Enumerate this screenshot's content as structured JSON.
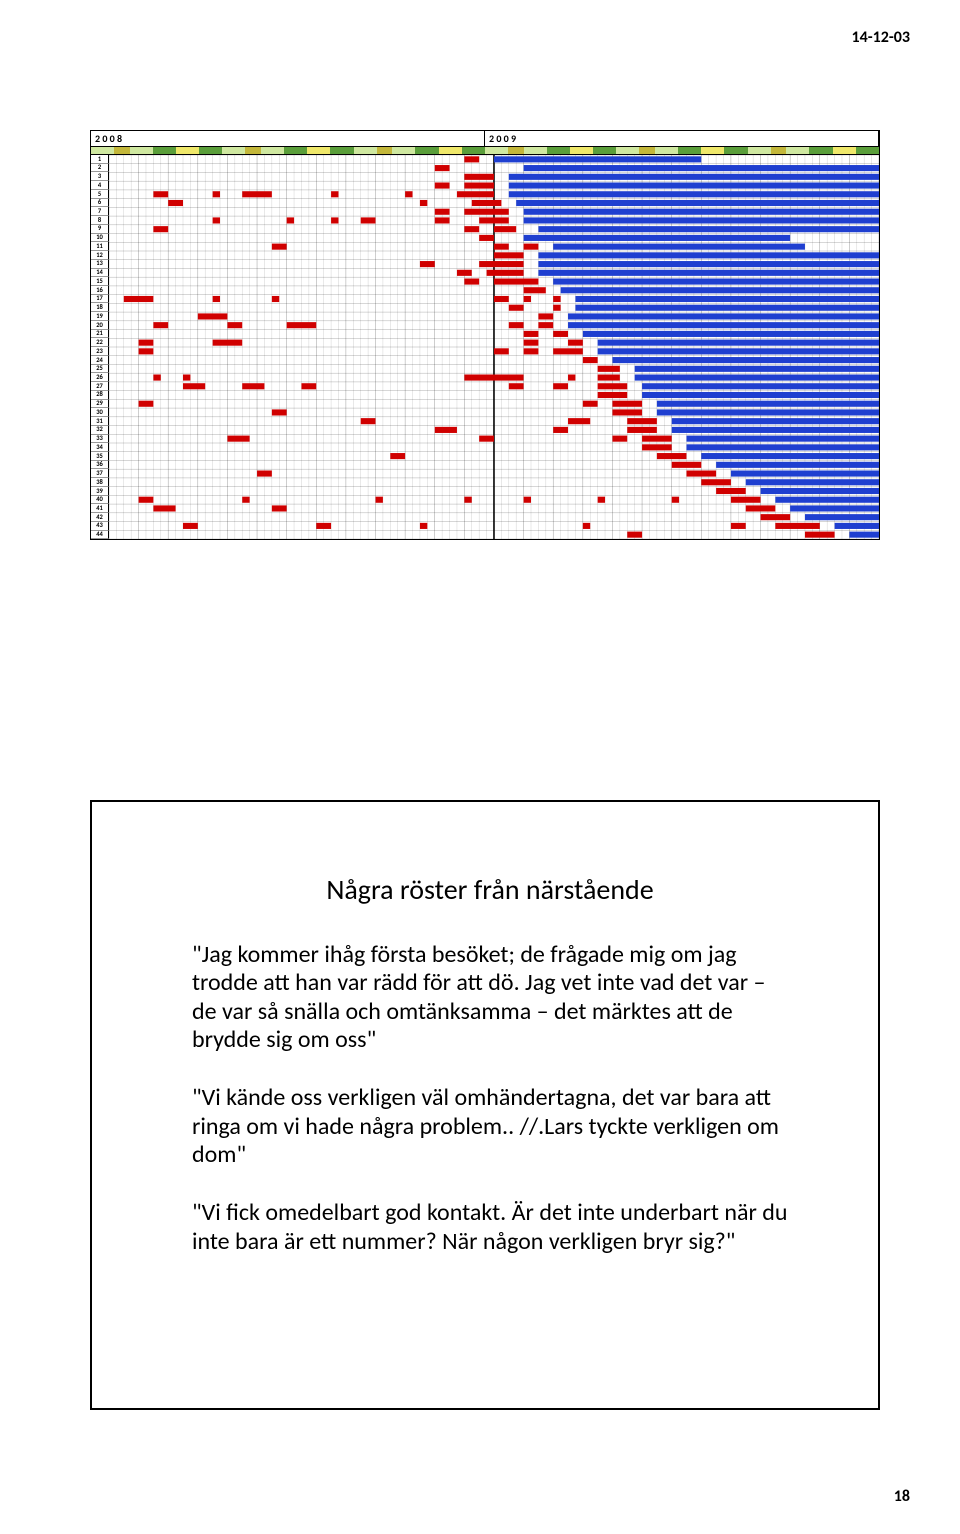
{
  "header": {
    "date": "14-12-03"
  },
  "footer": {
    "page": "18"
  },
  "chart": {
    "years": [
      "2 0 0 8",
      "2 0 0 9"
    ],
    "row_count": 44,
    "col_count": 104,
    "label_col_width": 18,
    "grid_line_color": "#000000",
    "grid_line_opacity_minor": 0.35,
    "background": "#ffffff",
    "year_split_col": 52,
    "stripe": {
      "height": 8,
      "segments": [
        {
          "w": 0.03,
          "c": "#cfe8a0"
        },
        {
          "w": 0.02,
          "c": "#c3b73a"
        },
        {
          "w": 0.03,
          "c": "#cfe8a0"
        },
        {
          "w": 0.03,
          "c": "#5a9e3a"
        },
        {
          "w": 0.03,
          "c": "#efe86a"
        },
        {
          "w": 0.03,
          "c": "#5a9e3a"
        },
        {
          "w": 0.03,
          "c": "#cfe8a0"
        },
        {
          "w": 0.02,
          "c": "#c3b73a"
        },
        {
          "w": 0.03,
          "c": "#cfe8a0"
        },
        {
          "w": 0.03,
          "c": "#5a9e3a"
        },
        {
          "w": 0.03,
          "c": "#efe86a"
        },
        {
          "w": 0.03,
          "c": "#5a9e3a"
        },
        {
          "w": 0.03,
          "c": "#cfe8a0"
        },
        {
          "w": 0.02,
          "c": "#c3b73a"
        },
        {
          "w": 0.03,
          "c": "#cfe8a0"
        },
        {
          "w": 0.03,
          "c": "#5a9e3a"
        },
        {
          "w": 0.03,
          "c": "#efe86a"
        },
        {
          "w": 0.03,
          "c": "#5a9e3a"
        },
        {
          "w": 0.03,
          "c": "#cfe8a0"
        },
        {
          "w": 0.02,
          "c": "#c3b73a"
        },
        {
          "w": 0.03,
          "c": "#cfe8a0"
        },
        {
          "w": 0.03,
          "c": "#5a9e3a"
        },
        {
          "w": 0.03,
          "c": "#efe86a"
        },
        {
          "w": 0.03,
          "c": "#5a9e3a"
        },
        {
          "w": 0.03,
          "c": "#cfe8a0"
        },
        {
          "w": 0.02,
          "c": "#c3b73a"
        },
        {
          "w": 0.03,
          "c": "#cfe8a0"
        },
        {
          "w": 0.03,
          "c": "#5a9e3a"
        },
        {
          "w": 0.03,
          "c": "#efe86a"
        },
        {
          "w": 0.03,
          "c": "#5a9e3a"
        },
        {
          "w": 0.03,
          "c": "#cfe8a0"
        },
        {
          "w": 0.02,
          "c": "#c3b73a"
        },
        {
          "w": 0.03,
          "c": "#cfe8a0"
        },
        {
          "w": 0.03,
          "c": "#5a9e3a"
        },
        {
          "w": 0.03,
          "c": "#efe86a"
        },
        {
          "w": 0.03,
          "c": "#5a9e3a"
        }
      ]
    },
    "colors": {
      "red": "#d00000",
      "blue": "#1f3fd0"
    },
    "red_spans": [
      [
        1,
        [
          [
            48,
            50
          ]
        ]
      ],
      [
        2,
        [
          [
            44,
            46
          ]
        ]
      ],
      [
        3,
        [
          [
            48,
            52
          ]
        ]
      ],
      [
        4,
        [
          [
            44,
            46
          ],
          [
            48,
            52
          ]
        ]
      ],
      [
        5,
        [
          [
            6,
            8
          ],
          [
            14,
            15
          ],
          [
            18,
            22
          ],
          [
            30,
            31
          ],
          [
            40,
            41
          ],
          [
            47,
            52
          ]
        ]
      ],
      [
        6,
        [
          [
            8,
            10
          ],
          [
            42,
            43
          ],
          [
            49,
            53
          ]
        ]
      ],
      [
        7,
        [
          [
            44,
            46
          ],
          [
            48,
            54
          ]
        ]
      ],
      [
        8,
        [
          [
            14,
            15
          ],
          [
            24,
            25
          ],
          [
            30,
            31
          ],
          [
            34,
            36
          ],
          [
            44,
            46
          ],
          [
            50,
            54
          ]
        ]
      ],
      [
        9,
        [
          [
            6,
            8
          ],
          [
            48,
            50
          ],
          [
            52,
            55
          ]
        ]
      ],
      [
        10,
        [
          [
            50,
            52
          ]
        ]
      ],
      [
        11,
        [
          [
            22,
            24
          ],
          [
            52,
            54
          ],
          [
            56,
            58
          ]
        ]
      ],
      [
        12,
        [
          [
            52,
            56
          ]
        ]
      ],
      [
        13,
        [
          [
            42,
            44
          ],
          [
            50,
            56
          ]
        ]
      ],
      [
        14,
        [
          [
            47,
            49
          ],
          [
            51,
            56
          ]
        ]
      ],
      [
        15,
        [
          [
            48,
            50
          ],
          [
            52,
            58
          ]
        ]
      ],
      [
        16,
        [
          [
            56,
            59
          ]
        ]
      ],
      [
        17,
        [
          [
            2,
            6
          ],
          [
            14,
            15
          ],
          [
            22,
            23
          ],
          [
            52,
            54
          ],
          [
            56,
            57
          ],
          [
            60,
            61
          ]
        ]
      ],
      [
        18,
        [
          [
            54,
            56
          ],
          [
            60,
            61
          ]
        ]
      ],
      [
        19,
        [
          [
            12,
            16
          ],
          [
            58,
            60
          ]
        ]
      ],
      [
        20,
        [
          [
            6,
            8
          ],
          [
            16,
            18
          ],
          [
            24,
            28
          ],
          [
            54,
            56
          ],
          [
            58,
            60
          ]
        ]
      ],
      [
        21,
        [
          [
            56,
            58
          ],
          [
            60,
            62
          ]
        ]
      ],
      [
        22,
        [
          [
            4,
            6
          ],
          [
            14,
            18
          ],
          [
            56,
            58
          ],
          [
            62,
            64
          ]
        ]
      ],
      [
        23,
        [
          [
            4,
            6
          ],
          [
            52,
            54
          ],
          [
            56,
            58
          ],
          [
            60,
            64
          ]
        ]
      ],
      [
        24,
        [
          [
            64,
            66
          ]
        ]
      ],
      [
        25,
        [
          [
            66,
            69
          ]
        ]
      ],
      [
        26,
        [
          [
            6,
            7
          ],
          [
            10,
            11
          ],
          [
            48,
            56
          ],
          [
            62,
            63
          ],
          [
            66,
            69
          ]
        ]
      ],
      [
        27,
        [
          [
            10,
            13
          ],
          [
            18,
            21
          ],
          [
            26,
            28
          ],
          [
            54,
            56
          ],
          [
            60,
            62
          ],
          [
            66,
            70
          ]
        ]
      ],
      [
        28,
        [
          [
            66,
            70
          ]
        ]
      ],
      [
        29,
        [
          [
            4,
            6
          ],
          [
            64,
            66
          ],
          [
            68,
            72
          ]
        ]
      ],
      [
        30,
        [
          [
            22,
            24
          ],
          [
            68,
            72
          ]
        ]
      ],
      [
        31,
        [
          [
            34,
            36
          ],
          [
            62,
            65
          ],
          [
            70,
            74
          ]
        ]
      ],
      [
        32,
        [
          [
            44,
            47
          ],
          [
            60,
            62
          ],
          [
            70,
            74
          ]
        ]
      ],
      [
        33,
        [
          [
            16,
            19
          ],
          [
            50,
            52
          ],
          [
            68,
            70
          ],
          [
            72,
            76
          ]
        ]
      ],
      [
        34,
        [
          [
            72,
            76
          ]
        ]
      ],
      [
        35,
        [
          [
            38,
            40
          ],
          [
            74,
            78
          ]
        ]
      ],
      [
        36,
        [
          [
            76,
            80
          ]
        ]
      ],
      [
        37,
        [
          [
            20,
            22
          ],
          [
            78,
            82
          ]
        ]
      ],
      [
        38,
        [
          [
            80,
            84
          ]
        ]
      ],
      [
        39,
        [
          [
            82,
            86
          ]
        ]
      ],
      [
        40,
        [
          [
            4,
            6
          ],
          [
            18,
            19
          ],
          [
            36,
            37
          ],
          [
            48,
            49
          ],
          [
            56,
            57
          ],
          [
            66,
            67
          ],
          [
            76,
            77
          ],
          [
            84,
            88
          ]
        ]
      ],
      [
        41,
        [
          [
            6,
            9
          ],
          [
            22,
            24
          ],
          [
            86,
            90
          ]
        ]
      ],
      [
        42,
        [
          [
            88,
            92
          ]
        ]
      ],
      [
        43,
        [
          [
            10,
            12
          ],
          [
            28,
            30
          ],
          [
            42,
            43
          ],
          [
            64,
            65
          ],
          [
            84,
            86
          ],
          [
            90,
            96
          ]
        ]
      ],
      [
        44,
        [
          [
            70,
            72
          ],
          [
            94,
            98
          ]
        ]
      ]
    ],
    "blue_spans": [
      [
        1,
        [
          [
            52,
            80
          ]
        ]
      ],
      [
        2,
        [
          [
            56,
            104
          ]
        ]
      ],
      [
        3,
        [
          [
            54,
            104
          ]
        ]
      ],
      [
        4,
        [
          [
            54,
            104
          ]
        ]
      ],
      [
        5,
        [
          [
            54,
            104
          ]
        ]
      ],
      [
        6,
        [
          [
            55,
            104
          ]
        ]
      ],
      [
        7,
        [
          [
            56,
            104
          ]
        ]
      ],
      [
        8,
        [
          [
            56,
            104
          ]
        ]
      ],
      [
        9,
        [
          [
            58,
            104
          ]
        ]
      ],
      [
        10,
        [
          [
            56,
            92
          ]
        ]
      ],
      [
        11,
        [
          [
            60,
            94
          ]
        ]
      ],
      [
        12,
        [
          [
            58,
            104
          ]
        ]
      ],
      [
        13,
        [
          [
            58,
            104
          ]
        ]
      ],
      [
        14,
        [
          [
            58,
            104
          ]
        ]
      ],
      [
        15,
        [
          [
            60,
            104
          ]
        ]
      ],
      [
        16,
        [
          [
            61,
            104
          ]
        ]
      ],
      [
        17,
        [
          [
            63,
            104
          ]
        ]
      ],
      [
        18,
        [
          [
            63,
            104
          ]
        ]
      ],
      [
        19,
        [
          [
            62,
            104
          ]
        ]
      ],
      [
        20,
        [
          [
            62,
            104
          ]
        ]
      ],
      [
        21,
        [
          [
            64,
            104
          ]
        ]
      ],
      [
        22,
        [
          [
            66,
            104
          ]
        ]
      ],
      [
        23,
        [
          [
            66,
            104
          ]
        ]
      ],
      [
        24,
        [
          [
            68,
            104
          ]
        ]
      ],
      [
        25,
        [
          [
            71,
            104
          ]
        ]
      ],
      [
        26,
        [
          [
            71,
            104
          ]
        ]
      ],
      [
        27,
        [
          [
            72,
            104
          ]
        ]
      ],
      [
        28,
        [
          [
            72,
            104
          ]
        ]
      ],
      [
        29,
        [
          [
            74,
            104
          ]
        ]
      ],
      [
        30,
        [
          [
            74,
            104
          ]
        ]
      ],
      [
        31,
        [
          [
            76,
            104
          ]
        ]
      ],
      [
        32,
        [
          [
            76,
            104
          ]
        ]
      ],
      [
        33,
        [
          [
            78,
            104
          ]
        ]
      ],
      [
        34,
        [
          [
            78,
            104
          ]
        ]
      ],
      [
        35,
        [
          [
            80,
            104
          ]
        ]
      ],
      [
        36,
        [
          [
            82,
            104
          ]
        ]
      ],
      [
        37,
        [
          [
            84,
            104
          ]
        ]
      ],
      [
        38,
        [
          [
            86,
            104
          ]
        ]
      ],
      [
        39,
        [
          [
            88,
            104
          ]
        ]
      ],
      [
        40,
        [
          [
            90,
            104
          ]
        ]
      ],
      [
        41,
        [
          [
            92,
            104
          ]
        ]
      ],
      [
        42,
        [
          [
            94,
            104
          ]
        ]
      ],
      [
        43,
        [
          [
            98,
            104
          ]
        ]
      ],
      [
        44,
        [
          [
            100,
            104
          ]
        ]
      ]
    ]
  },
  "text_panel": {
    "title": "Några röster från närstående",
    "q1": "\"Jag kommer ihåg första besöket; de frågade mig om jag trodde att han var rädd för att dö. Jag vet inte vad det var – de var så snälla och omtänksamma – det märktes att de brydde sig om oss\"",
    "q2": "\"Vi kände oss verkligen väl omhändertagna, det var bara att ringa om vi hade några problem.. //.Lars tyckte verkligen om dom\"",
    "q3": "\"Vi fick omedelbart god kontakt. Är det inte underbart när du inte bara är ett nummer? När någon verkligen bryr sig?\""
  }
}
